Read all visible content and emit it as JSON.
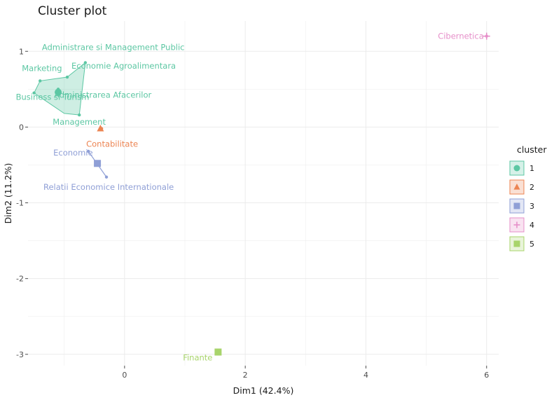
{
  "colors": {
    "cluster_1": "#5cc7a3",
    "cluster_2": "#ec8452",
    "cluster_3": "#8f9fd6",
    "cluster_4": "#e68fc9",
    "cluster_5": "#a8d46b",
    "panel_background": "#ffffff",
    "grid": "#ebebeb"
  },
  "chart_data": {
    "type": "scatter",
    "title": "Cluster plot",
    "xlabel": "Dim1 (42.4%)",
    "ylabel": "Dim2 (11.2%)",
    "xlim": [
      -1.6,
      6.2
    ],
    "ylim": [
      -3.15,
      1.4
    ],
    "x_ticks": [
      0,
      2,
      4,
      6
    ],
    "x_tick_labels": [
      "0",
      "2",
      "4",
      "6"
    ],
    "y_ticks": [
      -3,
      -2,
      -1,
      0,
      1
    ],
    "y_tick_labels": [
      "-3",
      "-2",
      "-1",
      "0",
      "1"
    ],
    "grid": true,
    "legend": {
      "title": "cluster",
      "position": "right",
      "entries": [
        {
          "label": "1",
          "cluster": 1,
          "shape": "circle"
        },
        {
          "label": "2",
          "cluster": 2,
          "shape": "triangle"
        },
        {
          "label": "3",
          "cluster": 3,
          "shape": "square"
        },
        {
          "label": "4",
          "cluster": 4,
          "shape": "plus"
        },
        {
          "label": "5",
          "cluster": 5,
          "shape": "square"
        }
      ]
    },
    "points": [
      {
        "label": "Administrare si Management Public",
        "x": -0.65,
        "y": 0.85,
        "cluster": 1
      },
      {
        "label": "Marketing",
        "x": -1.4,
        "y": 0.61,
        "cluster": 1
      },
      {
        "label": "Economie Agroalimentara",
        "x": -0.95,
        "y": 0.66,
        "cluster": 1
      },
      {
        "label": "Administrarea Afacerilor",
        "x": -1.1,
        "y": 0.5,
        "cluster": 1
      },
      {
        "label": "Business si Turism",
        "x": -1.5,
        "y": 0.45,
        "cluster": 1
      },
      {
        "label": "Management",
        "x": -0.75,
        "y": 0.16,
        "cluster": 1
      },
      {
        "label": "Contabilitate",
        "x": -0.38,
        "y": -0.02,
        "cluster": 2
      },
      {
        "label": "Economie",
        "x": -0.6,
        "y": -0.32,
        "cluster": 3
      },
      {
        "label": "Relatii Economice Internationale",
        "x": -0.3,
        "y": -0.66,
        "cluster": 3
      },
      {
        "label": "Cibernetica",
        "x": 6.0,
        "y": 1.2,
        "cluster": 4
      },
      {
        "label": "Finante",
        "x": 1.55,
        "y": -2.97,
        "cluster": 5
      }
    ],
    "centroids": [
      {
        "cluster": 1,
        "x": -1.1,
        "y": 0.46
      },
      {
        "cluster": 2,
        "x": -0.4,
        "y": -0.02
      },
      {
        "cluster": 3,
        "x": -0.45,
        "y": -0.48
      },
      {
        "cluster": 4,
        "x": 6.0,
        "y": 1.2
      },
      {
        "cluster": 5,
        "x": 1.55,
        "y": -2.97
      }
    ],
    "hulls": [
      {
        "cluster": 1,
        "points": [
          [
            -1.5,
            0.45
          ],
          [
            -1.4,
            0.61
          ],
          [
            -0.95,
            0.66
          ],
          [
            -0.65,
            0.85
          ],
          [
            -0.75,
            0.16
          ],
          [
            -1.0,
            0.18
          ]
        ]
      },
      {
        "cluster": 3,
        "points": [
          [
            -0.6,
            -0.32
          ],
          [
            -0.3,
            -0.66
          ]
        ]
      }
    ]
  }
}
